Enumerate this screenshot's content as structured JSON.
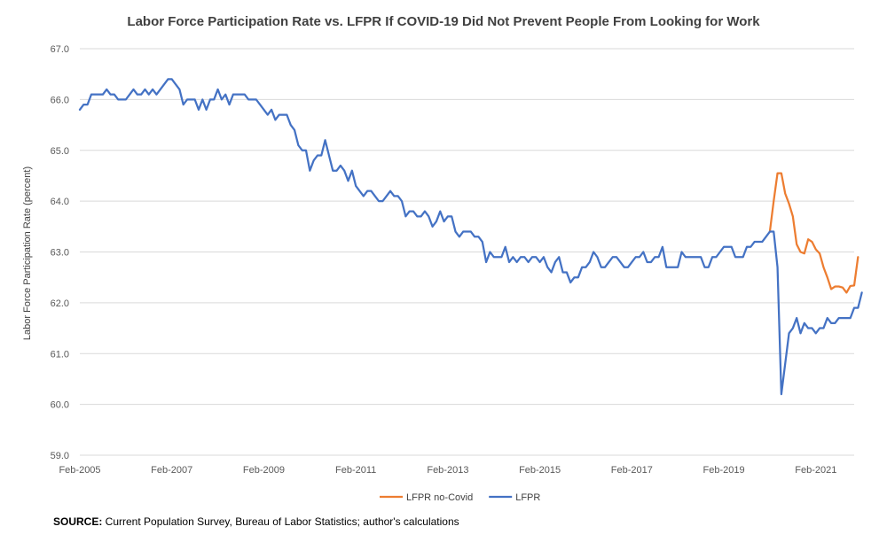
{
  "chart_data": {
    "type": "line",
    "title": "Labor Force Participation Rate vs. LFPR If COVID-19 Did Not Prevent People From Looking for Work",
    "ylabel": "Labor Force Participation Rate (percent)",
    "xlabel": "",
    "ylim": [
      59.0,
      67.0
    ],
    "y_ticks": [
      "59.0",
      "60.0",
      "61.0",
      "62.0",
      "63.0",
      "64.0",
      "65.0",
      "66.0",
      "67.0"
    ],
    "x_ticks": [
      "Feb-2005",
      "Feb-2007",
      "Feb-2009",
      "Feb-2011",
      "Feb-2013",
      "Feb-2015",
      "Feb-2017",
      "Feb-2019",
      "Feb-2021"
    ],
    "x_range_months": {
      "start": "Feb-2005",
      "end": "Dec-2021"
    },
    "grid": "horizontal",
    "legend_position": "bottom",
    "series": [
      {
        "name": "LFPR no-Covid",
        "color": "#ED7D31",
        "start": "Feb-2020",
        "values": [
          63.4,
          64.0,
          64.55,
          64.55,
          64.15,
          63.95,
          63.7,
          63.15,
          63.0,
          62.97,
          63.25,
          63.2,
          63.05,
          62.97,
          62.7,
          62.5,
          62.27,
          62.32,
          62.32,
          62.3,
          62.2,
          62.33,
          62.34,
          62.9
        ]
      },
      {
        "name": "LFPR",
        "color": "#4472C4",
        "start": "Feb-2005",
        "values": [
          65.8,
          65.9,
          65.9,
          66.1,
          66.1,
          66.1,
          66.1,
          66.2,
          66.1,
          66.1,
          66.0,
          66.0,
          66.0,
          66.1,
          66.2,
          66.1,
          66.1,
          66.2,
          66.1,
          66.2,
          66.1,
          66.2,
          66.3,
          66.4,
          66.4,
          66.3,
          66.2,
          65.9,
          66.0,
          66.0,
          66.0,
          65.8,
          66.0,
          65.8,
          66.0,
          66.0,
          66.2,
          66.0,
          66.1,
          65.9,
          66.1,
          66.1,
          66.1,
          66.1,
          66.0,
          66.0,
          66.0,
          65.9,
          65.8,
          65.7,
          65.8,
          65.6,
          65.7,
          65.7,
          65.7,
          65.5,
          65.4,
          65.1,
          65.0,
          65.0,
          64.6,
          64.8,
          64.9,
          64.9,
          65.2,
          64.9,
          64.6,
          64.6,
          64.7,
          64.6,
          64.4,
          64.6,
          64.3,
          64.2,
          64.1,
          64.2,
          64.2,
          64.1,
          64.0,
          64.0,
          64.1,
          64.2,
          64.1,
          64.1,
          64.0,
          63.7,
          63.8,
          63.8,
          63.7,
          63.7,
          63.8,
          63.7,
          63.5,
          63.6,
          63.8,
          63.6,
          63.7,
          63.7,
          63.4,
          63.3,
          63.4,
          63.4,
          63.4,
          63.3,
          63.3,
          63.2,
          62.8,
          63.0,
          62.9,
          62.9,
          62.9,
          63.1,
          62.8,
          62.9,
          62.8,
          62.9,
          62.9,
          62.8,
          62.9,
          62.9,
          62.8,
          62.9,
          62.7,
          62.6,
          62.8,
          62.9,
          62.6,
          62.6,
          62.4,
          62.5,
          62.5,
          62.7,
          62.7,
          62.8,
          63.0,
          62.9,
          62.7,
          62.7,
          62.8,
          62.9,
          62.9,
          62.8,
          62.7,
          62.7,
          62.8,
          62.9,
          62.9,
          63.0,
          62.8,
          62.8,
          62.9,
          62.9,
          63.1,
          62.7,
          62.7,
          62.7,
          62.7,
          63.0,
          62.9,
          62.9,
          62.9,
          62.9,
          62.9,
          62.7,
          62.7,
          62.9,
          62.9,
          63.0,
          63.1,
          63.1,
          63.1,
          62.9,
          62.9,
          62.9,
          63.1,
          63.1,
          63.2,
          63.2,
          63.2,
          63.3,
          63.4,
          63.4,
          62.7,
          60.2,
          60.8,
          61.4,
          61.5,
          61.7,
          61.4,
          61.6,
          61.5,
          61.5,
          61.4,
          61.5,
          61.5,
          61.7,
          61.6,
          61.6,
          61.7,
          61.7,
          61.7,
          61.7,
          61.9,
          61.9,
          62.2
        ]
      }
    ]
  },
  "source": {
    "label": "SOURCE:",
    "text": " Current Population Survey, Bureau of Labor Statistics; author's calculations"
  }
}
